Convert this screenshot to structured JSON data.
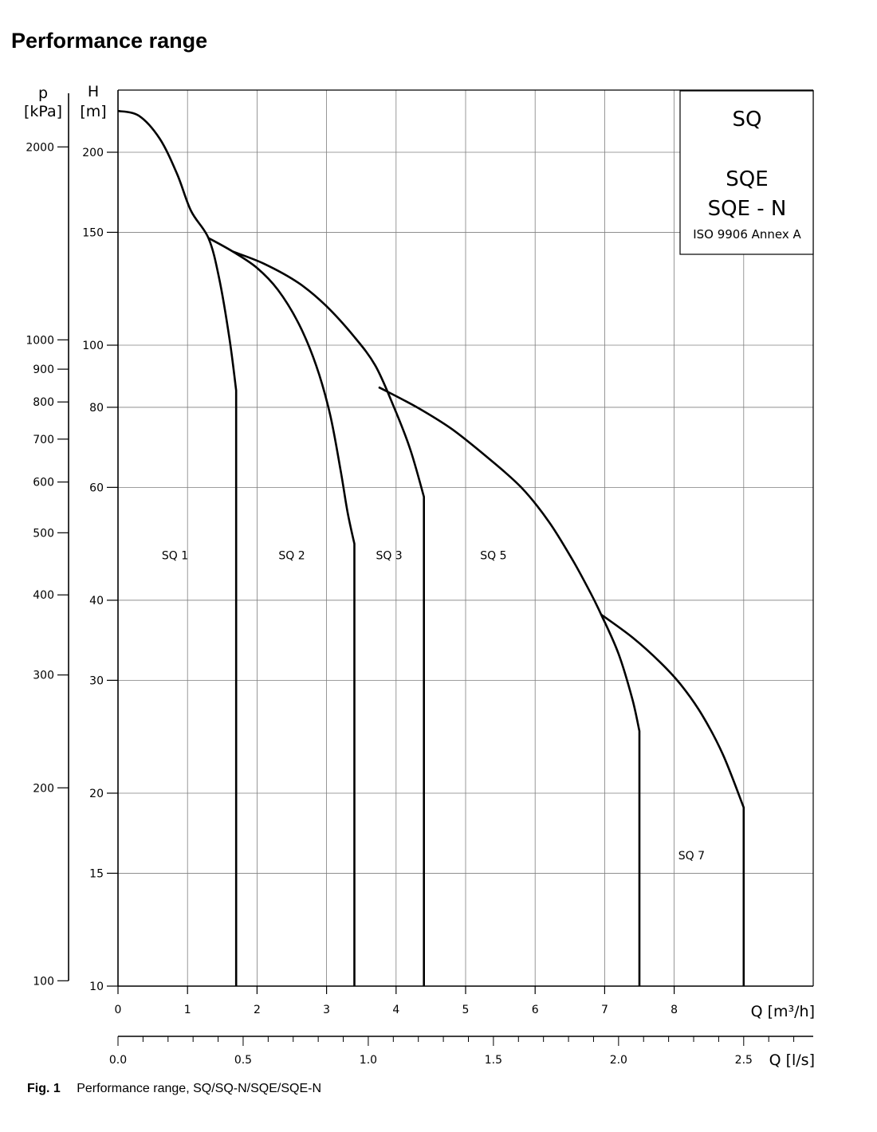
{
  "page": {
    "title": "Performance range",
    "caption_fig": "Fig. 1",
    "caption_text": "Performance range, SQ/SQ-N/SQE/SQE-N"
  },
  "legend": {
    "lines": [
      "SQ",
      "SQE",
      "SQE - N"
    ],
    "note": "ISO 9906 Annex A"
  },
  "colors": {
    "curve": "#000000",
    "grid": "#7f7f7f",
    "axis": "#000000"
  },
  "chart_data": {
    "type": "line",
    "title": "Performance range",
    "log_scale_y": true,
    "grid": true,
    "legend_placement": "top-right",
    "x": {
      "label": "Q [m³/h]",
      "range": [
        0,
        10
      ],
      "ticks": [
        0,
        1,
        2,
        3,
        4,
        5,
        6,
        7,
        8
      ],
      "tick_labels": [
        "0",
        "1",
        "2",
        "3",
        "4",
        "5",
        "6",
        "7",
        "8"
      ]
    },
    "x_secondary": {
      "label": "Q [l/s]",
      "ticks": [
        0.0,
        0.5,
        1.0,
        1.5,
        2.0,
        2.5
      ],
      "tick_labels": [
        "0.0",
        "0.5",
        "1.0",
        "1.5",
        "2.0",
        "2.5"
      ],
      "conversion_m3h_per_ls": 3.6
    },
    "y": {
      "label_symbol": "H",
      "label_unit": "[m]",
      "range": [
        10,
        250
      ],
      "ticks": [
        10,
        15,
        20,
        30,
        40,
        60,
        80,
        100,
        150,
        200
      ],
      "tick_labels": [
        "10",
        "15",
        "20",
        "30",
        "40",
        "60",
        "80",
        "100",
        "150",
        "200"
      ]
    },
    "y_secondary": {
      "label_symbol": "p",
      "label_unit": "[kPa]",
      "ticks": [
        100,
        200,
        300,
        400,
        500,
        600,
        700,
        800,
        900,
        1000,
        2000
      ],
      "tick_labels": [
        "100",
        "200",
        "300",
        "400",
        "500",
        "600",
        "700",
        "800",
        "900",
        "1000",
        "2000"
      ],
      "conversion_kpa_per_m": 9.81
    },
    "series": [
      {
        "name": "SQ 1",
        "label_at": [
          0.82,
          47
        ],
        "points": [
          [
            0,
            232
          ],
          [
            0.3,
            228
          ],
          [
            0.6,
            210
          ],
          [
            0.85,
            185
          ],
          [
            1.05,
            162
          ],
          [
            1.3,
            147
          ],
          [
            1.45,
            128
          ],
          [
            1.6,
            103
          ],
          [
            1.7,
            85
          ],
          [
            1.7,
            10
          ]
        ]
      },
      {
        "name": "SQ 2",
        "label_at": [
          2.5,
          47
        ],
        "points": [
          [
            1.3,
            147
          ],
          [
            1.65,
            140
          ],
          [
            2.0,
            132
          ],
          [
            2.3,
            122
          ],
          [
            2.6,
            108
          ],
          [
            2.85,
            93
          ],
          [
            3.05,
            78
          ],
          [
            3.2,
            64
          ],
          [
            3.3,
            55
          ],
          [
            3.4,
            49
          ],
          [
            3.4,
            10
          ]
        ]
      },
      {
        "name": "SQ 3",
        "label_at": [
          3.9,
          47
        ],
        "points": [
          [
            1.65,
            140
          ],
          [
            2.1,
            134
          ],
          [
            2.6,
            125
          ],
          [
            3.0,
            115
          ],
          [
            3.4,
            103
          ],
          [
            3.7,
            93
          ],
          [
            3.95,
            81
          ],
          [
            4.2,
            69
          ],
          [
            4.4,
            58
          ],
          [
            4.4,
            10
          ]
        ]
      },
      {
        "name": "SQ 5",
        "label_at": [
          5.4,
          47
        ],
        "points": [
          [
            3.75,
            86
          ],
          [
            4.3,
            80
          ],
          [
            4.8,
            74
          ],
          [
            5.3,
            67
          ],
          [
            5.8,
            60
          ],
          [
            6.2,
            53
          ],
          [
            6.55,
            46
          ],
          [
            6.8,
            41
          ],
          [
            6.95,
            38
          ],
          [
            7.2,
            33
          ],
          [
            7.4,
            28
          ],
          [
            7.5,
            25
          ],
          [
            7.5,
            10
          ]
        ]
      },
      {
        "name": "SQ 7",
        "label_at": [
          8.25,
          16
        ],
        "points": [
          [
            6.95,
            38
          ],
          [
            7.4,
            35
          ],
          [
            7.8,
            32
          ],
          [
            8.1,
            29.5
          ],
          [
            8.4,
            26.5
          ],
          [
            8.7,
            23
          ],
          [
            9.0,
            19
          ],
          [
            9.0,
            10
          ]
        ]
      }
    ]
  }
}
